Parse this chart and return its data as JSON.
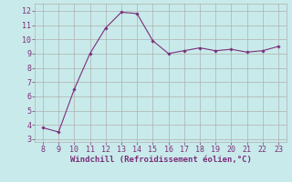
{
  "x": [
    8,
    9,
    10,
    11,
    12,
    13,
    14,
    15,
    16,
    17,
    18,
    19,
    20,
    21,
    22,
    23
  ],
  "y": [
    3.8,
    3.5,
    6.5,
    9.0,
    10.8,
    11.9,
    11.8,
    9.9,
    9.0,
    9.2,
    9.4,
    9.2,
    9.3,
    9.1,
    9.2,
    9.5
  ],
  "line_color": "#7b2f7b",
  "marker": "D",
  "marker_size": 1.8,
  "bg_color": "#c8eaea",
  "grid_color": "#b0b0b0",
  "xlabel": "Windchill (Refroidissement éolien,°C)",
  "xlabel_color": "#7b2f7b",
  "xlabel_fontsize": 6.5,
  "tick_color": "#7b2f7b",
  "tick_fontsize": 6,
  "xlim": [
    7.5,
    23.5
  ],
  "ylim": [
    2.8,
    12.5
  ],
  "xticks": [
    8,
    9,
    10,
    11,
    12,
    13,
    14,
    15,
    16,
    17,
    18,
    19,
    20,
    21,
    22,
    23
  ],
  "yticks": [
    3,
    4,
    5,
    6,
    7,
    8,
    9,
    10,
    11,
    12
  ]
}
